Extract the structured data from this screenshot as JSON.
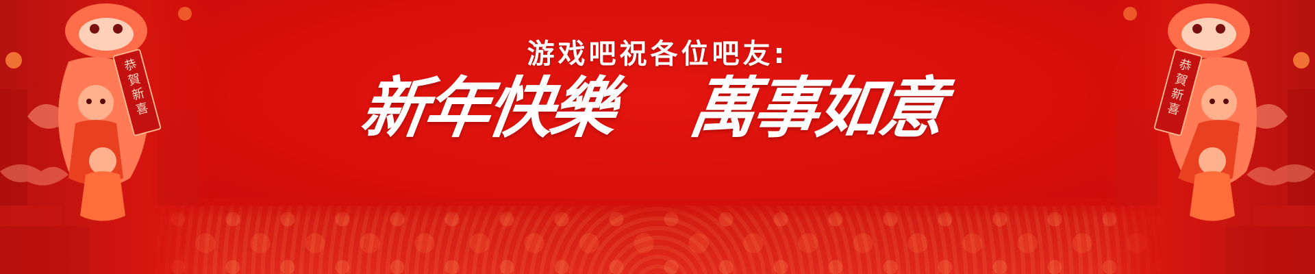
{
  "banner": {
    "greeting": "游戏吧祝各位吧友:",
    "blessing_left": "新年快樂",
    "blessing_right": "萬事如意",
    "scroll_text_left": "恭賀新喜",
    "scroll_text_right": "恭賀新喜"
  },
  "colors": {
    "background": "#d80f0b",
    "text": "#ffffff",
    "accent_orange": "#ff7a3a"
  }
}
